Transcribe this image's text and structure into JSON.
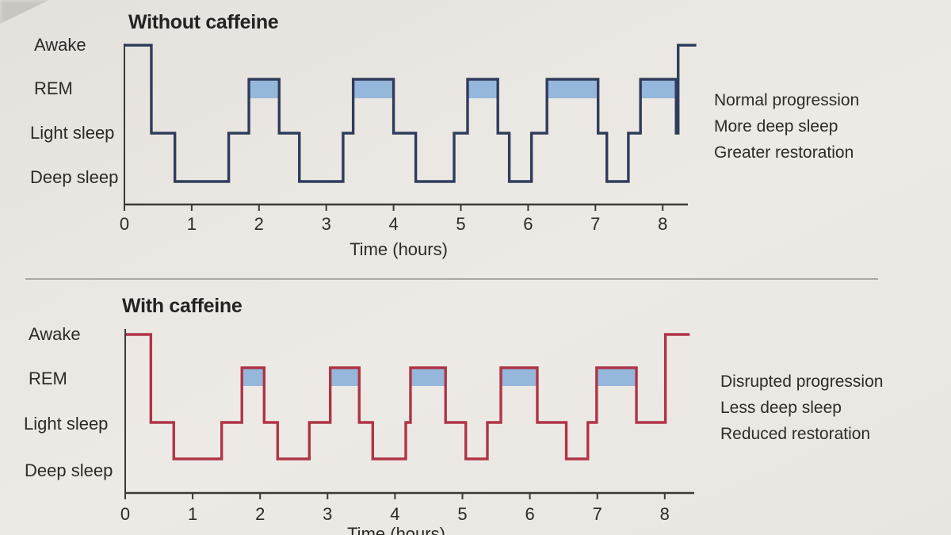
{
  "chart_data": [
    {
      "type": "line",
      "variant": "step-hypnogram",
      "title": "Without caffeine",
      "stages": [
        "Awake",
        "REM",
        "Light sleep",
        "Deep sleep"
      ],
      "xlabel": "Time (hours)",
      "x_ticks": [
        0,
        1,
        2,
        3,
        4,
        5,
        6,
        7,
        8
      ],
      "xlim": [
        0,
        8.5
      ],
      "grid": false,
      "legend": "none",
      "line_color": "#303c5b",
      "rem_fill_color": "#95b7db",
      "axis_color": "#3a3a37",
      "rem_highlighted": true,
      "segments": [
        {
          "stage": "Awake",
          "start": 0,
          "end": 0.4
        },
        {
          "stage": "Light sleep",
          "start": 0.4,
          "end": 0.75
        },
        {
          "stage": "Deep sleep",
          "start": 0.75,
          "end": 1.55
        },
        {
          "stage": "Light sleep",
          "start": 1.55,
          "end": 1.85
        },
        {
          "stage": "REM",
          "start": 1.85,
          "end": 2.3
        },
        {
          "stage": "Light sleep",
          "start": 2.3,
          "end": 2.6
        },
        {
          "stage": "Deep sleep",
          "start": 2.6,
          "end": 3.25
        },
        {
          "stage": "Light sleep",
          "start": 3.25,
          "end": 3.4
        },
        {
          "stage": "REM",
          "start": 3.4,
          "end": 4.0
        },
        {
          "stage": "Light sleep",
          "start": 4.0,
          "end": 4.33
        },
        {
          "stage": "Deep sleep",
          "start": 4.33,
          "end": 4.9
        },
        {
          "stage": "Light sleep",
          "start": 4.9,
          "end": 5.1
        },
        {
          "stage": "REM",
          "start": 5.1,
          "end": 5.55
        },
        {
          "stage": "Light sleep",
          "start": 5.55,
          "end": 5.72
        },
        {
          "stage": "Deep sleep",
          "start": 5.72,
          "end": 6.05
        },
        {
          "stage": "Light sleep",
          "start": 6.05,
          "end": 6.28
        },
        {
          "stage": "REM",
          "start": 6.28,
          "end": 7.04
        },
        {
          "stage": "Light sleep",
          "start": 7.04,
          "end": 7.17
        },
        {
          "stage": "Deep sleep",
          "start": 7.17,
          "end": 7.49
        },
        {
          "stage": "Light sleep",
          "start": 7.49,
          "end": 7.67
        },
        {
          "stage": "REM",
          "start": 7.67,
          "end": 8.2
        },
        {
          "stage": "Light sleep",
          "start": 8.2,
          "end": 8.23
        },
        {
          "stage": "Awake",
          "start": 8.23,
          "end": 8.5
        }
      ],
      "annotations": [
        "Normal progression",
        "More deep sleep",
        "Greater restoration"
      ]
    },
    {
      "type": "line",
      "variant": "step-hypnogram",
      "title": "With caffeine",
      "stages": [
        "Awake",
        "REM",
        "Light sleep",
        "Deep sleep"
      ],
      "xlabel": "Time (hours)",
      "x_ticks": [
        0,
        1,
        2,
        3,
        4,
        5,
        6,
        7,
        8
      ],
      "xlim": [
        0,
        8.4
      ],
      "grid": false,
      "legend": "none",
      "line_color": "#b03447",
      "rem_fill_color": "#95b7db",
      "axis_color": "#3a3a37",
      "rem_highlighted": true,
      "segments": [
        {
          "stage": "Awake",
          "start": 0,
          "end": 0.38
        },
        {
          "stage": "Light sleep",
          "start": 0.38,
          "end": 0.72
        },
        {
          "stage": "Deep sleep",
          "start": 0.72,
          "end": 1.43
        },
        {
          "stage": "Light sleep",
          "start": 1.43,
          "end": 1.73
        },
        {
          "stage": "REM",
          "start": 1.73,
          "end": 2.06
        },
        {
          "stage": "Light sleep",
          "start": 2.06,
          "end": 2.26
        },
        {
          "stage": "Deep sleep",
          "start": 2.26,
          "end": 2.73
        },
        {
          "stage": "Light sleep",
          "start": 2.73,
          "end": 3.04
        },
        {
          "stage": "REM",
          "start": 3.04,
          "end": 3.47
        },
        {
          "stage": "Light sleep",
          "start": 3.47,
          "end": 3.67
        },
        {
          "stage": "Deep sleep",
          "start": 3.67,
          "end": 4.16
        },
        {
          "stage": "Light sleep",
          "start": 4.16,
          "end": 4.23
        },
        {
          "stage": "REM",
          "start": 4.23,
          "end": 4.75
        },
        {
          "stage": "Light sleep",
          "start": 4.75,
          "end": 5.05
        },
        {
          "stage": "Deep sleep",
          "start": 5.05,
          "end": 5.37
        },
        {
          "stage": "Light sleep",
          "start": 5.37,
          "end": 5.57
        },
        {
          "stage": "REM",
          "start": 5.57,
          "end": 6.11
        },
        {
          "stage": "Light sleep",
          "start": 6.11,
          "end": 6.54
        },
        {
          "stage": "Deep sleep",
          "start": 6.54,
          "end": 6.86
        },
        {
          "stage": "Light sleep",
          "start": 6.86,
          "end": 6.99
        },
        {
          "stage": "REM",
          "start": 6.99,
          "end": 7.58
        },
        {
          "stage": "Light sleep",
          "start": 7.58,
          "end": 8.01
        },
        {
          "stage": "Awake",
          "start": 8.01,
          "end": 8.37
        }
      ],
      "annotations": [
        "Disrupted progression",
        "Less deep sleep",
        "Reduced restoration"
      ]
    }
  ]
}
